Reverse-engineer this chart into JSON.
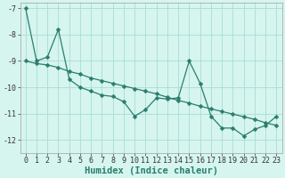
{
  "xlabel": "Humidex (Indice chaleur)",
  "x_values": [
    0,
    1,
    2,
    3,
    4,
    5,
    6,
    7,
    8,
    9,
    10,
    11,
    12,
    13,
    14,
    15,
    16,
    17,
    18,
    19,
    20,
    21,
    22,
    23
  ],
  "y_jagged": [
    -7.0,
    -9.0,
    -8.85,
    -7.8,
    -9.7,
    -10.0,
    -10.15,
    -10.3,
    -10.35,
    -10.55,
    -11.1,
    -10.85,
    -10.4,
    -10.45,
    -10.4,
    -9.0,
    -9.85,
    -11.1,
    -11.55,
    -11.55,
    -11.85,
    -11.6,
    -11.45,
    -11.1
  ],
  "y_straight": [
    -9.0,
    -9.1,
    -9.15,
    -9.25,
    -9.4,
    -9.5,
    -9.65,
    -9.75,
    -9.85,
    -9.95,
    -10.05,
    -10.15,
    -10.25,
    -10.38,
    -10.5,
    -10.6,
    -10.72,
    -10.82,
    -10.92,
    -11.02,
    -11.12,
    -11.22,
    -11.35,
    -11.45
  ],
  "line_color": "#2a7d6e",
  "bg_color": "#d6f5ef",
  "grid_color": "#a8ddd5",
  "spine_color": "#a0a0a0",
  "ylim": [
    -12.5,
    -6.8
  ],
  "xlim": [
    -0.5,
    23.5
  ],
  "yticks": [
    -7,
    -8,
    -9,
    -10,
    -11,
    -12
  ],
  "xticks": [
    0,
    1,
    2,
    3,
    4,
    5,
    6,
    7,
    8,
    9,
    10,
    11,
    12,
    13,
    14,
    15,
    16,
    17,
    18,
    19,
    20,
    21,
    22,
    23
  ],
  "tick_fontsize": 6.0,
  "xlabel_fontsize": 7.5,
  "marker_size": 2.5,
  "linewidth": 0.9
}
